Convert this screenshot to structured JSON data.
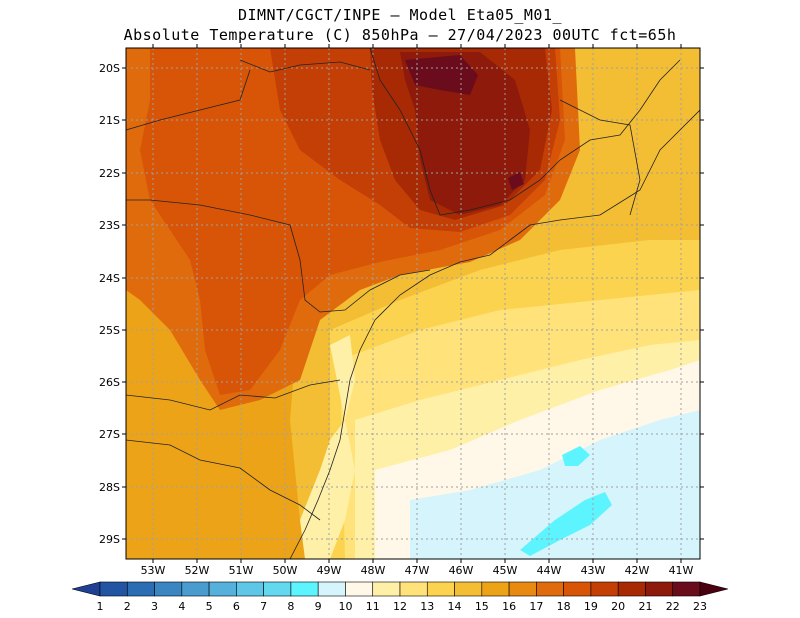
{
  "title": {
    "line1": "DIMNT/CGCT/INPE –  Model Eta05_M01_",
    "line2": "Absolute Temperature (C) 850hPa –  27/04/2023 00UTC fct=65h"
  },
  "axes": {
    "lat_labels": [
      "20S",
      "21S",
      "22S",
      "23S",
      "24S",
      "25S",
      "26S",
      "27S",
      "28S",
      "29S"
    ],
    "lon_labels": [
      "53W",
      "52W",
      "51W",
      "50W",
      "49W",
      "48W",
      "47W",
      "46W",
      "45W",
      "44W",
      "43W",
      "42W",
      "41W"
    ]
  },
  "colorbar": {
    "labels": [
      "1",
      "2",
      "3",
      "4",
      "5",
      "6",
      "7",
      "8",
      "9",
      "10",
      "11",
      "12",
      "13",
      "14",
      "15",
      "16",
      "17",
      "18",
      "19",
      "20",
      "21",
      "22",
      "23"
    ],
    "colors": [
      "#1f3f94",
      "#2155a3",
      "#2a6db3",
      "#3a85c2",
      "#4a9ccf",
      "#55b1db",
      "#5ec6e6",
      "#62d9ef",
      "#5cf4ff",
      "#d6f4fb",
      "#fff8e8",
      "#fff0a8",
      "#ffe27a",
      "#fbd34e",
      "#f4be34",
      "#eda318",
      "#e88a12",
      "#e06b0c",
      "#d85508",
      "#c33f06",
      "#a82a04",
      "#8d1a0a",
      "#6a0c1c",
      "#4a0010"
    ]
  },
  "map": {
    "colors": {
      "t10": "#d6f4fb",
      "t11": "#fff8e8",
      "t12": "#fff0a8",
      "t13": "#ffe27a",
      "t14": "#fbd34e",
      "t15": "#f4be34",
      "t16": "#eda318",
      "t17": "#e88a12",
      "t18": "#e06b0c",
      "t19": "#d85508",
      "t20": "#c33f06",
      "t21": "#a82a04",
      "t22": "#8d1a0a",
      "t23": "#6a0c1c",
      "cyan": "#5cf4ff"
    }
  }
}
